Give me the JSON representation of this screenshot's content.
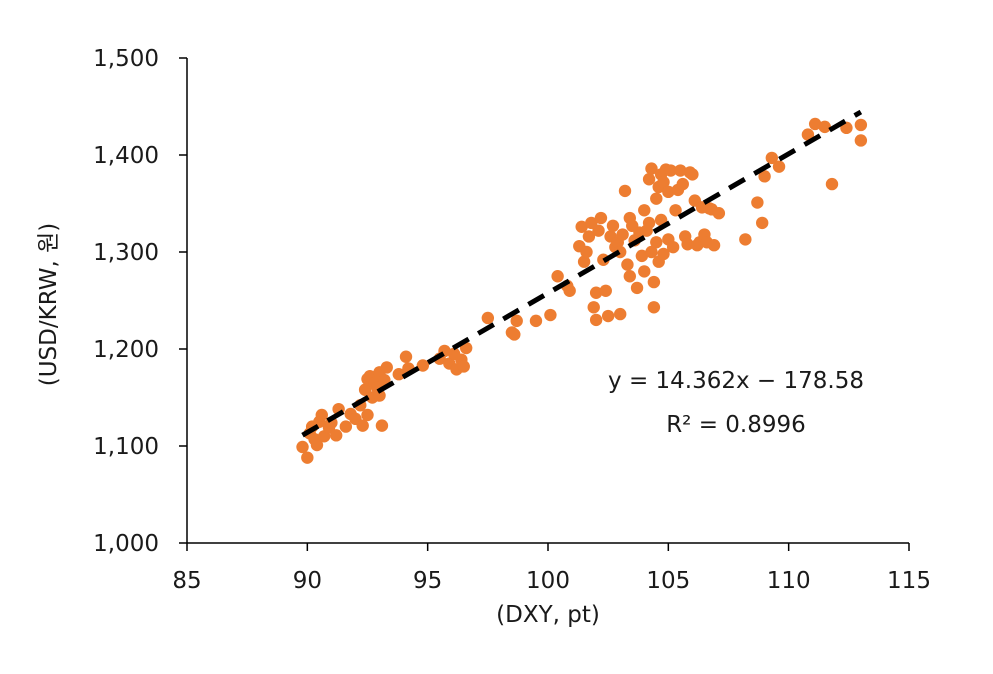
{
  "chart_data": {
    "type": "scatter",
    "xlabel": "(DXY, pt)",
    "ylabel": "(USD/KRW, 원)",
    "xlim": [
      85,
      115
    ],
    "ylim": [
      1000,
      1500
    ],
    "x_ticks": [
      85,
      90,
      95,
      100,
      105,
      110,
      115
    ],
    "y_ticks": [
      1000,
      1100,
      1200,
      1300,
      1400,
      1500
    ],
    "x_tick_labels": [
      "85",
      "90",
      "95",
      "100",
      "105",
      "110",
      "115"
    ],
    "y_tick_labels": [
      "1,000",
      "1,100",
      "1,200",
      "1,300",
      "1,400",
      "1,500"
    ],
    "grid": false,
    "marker_color": "#ED7D31",
    "trendline": {
      "type": "linear",
      "slope": 14.362,
      "intercept": -178.58,
      "x_range": [
        89.8,
        113.0
      ],
      "color": "#000000",
      "style": "dashed",
      "equation_label": "y = 14.362x − 178.58",
      "r2_label": "R² = 0.8996"
    },
    "series": [
      {
        "points": [
          [
            89.8,
            1099
          ],
          [
            90.0,
            1088
          ],
          [
            90.1,
            1113
          ],
          [
            90.2,
            1120
          ],
          [
            90.3,
            1107
          ],
          [
            90.4,
            1101
          ],
          [
            90.5,
            1125
          ],
          [
            90.6,
            1132
          ],
          [
            90.7,
            1110
          ],
          [
            90.9,
            1119
          ],
          [
            91.0,
            1124
          ],
          [
            91.2,
            1111
          ],
          [
            91.3,
            1138
          ],
          [
            91.6,
            1120
          ],
          [
            91.8,
            1133
          ],
          [
            92.0,
            1128
          ],
          [
            92.2,
            1142
          ],
          [
            92.3,
            1121
          ],
          [
            92.4,
            1158
          ],
          [
            92.5,
            1169
          ],
          [
            92.5,
            1132
          ],
          [
            92.6,
            1172
          ],
          [
            92.7,
            1150
          ],
          [
            92.8,
            1165
          ],
          [
            92.9,
            1160
          ],
          [
            93.0,
            1152
          ],
          [
            93.0,
            1176
          ],
          [
            93.1,
            1121
          ],
          [
            93.2,
            1168
          ],
          [
            93.3,
            1181
          ],
          [
            93.8,
            1174
          ],
          [
            94.1,
            1192
          ],
          [
            94.2,
            1180
          ],
          [
            94.8,
            1183
          ],
          [
            95.5,
            1190
          ],
          [
            95.7,
            1198
          ],
          [
            95.9,
            1185
          ],
          [
            96.1,
            1195
          ],
          [
            96.2,
            1179
          ],
          [
            96.4,
            1189
          ],
          [
            96.5,
            1182
          ],
          [
            96.6,
            1201
          ],
          [
            97.5,
            1232
          ],
          [
            98.5,
            1217
          ],
          [
            98.6,
            1215
          ],
          [
            98.7,
            1229
          ],
          [
            99.5,
            1229
          ],
          [
            100.1,
            1235
          ],
          [
            100.4,
            1275
          ],
          [
            100.8,
            1265
          ],
          [
            100.9,
            1260
          ],
          [
            101.3,
            1306
          ],
          [
            101.4,
            1326
          ],
          [
            101.5,
            1290
          ],
          [
            101.6,
            1300
          ],
          [
            101.7,
            1316
          ],
          [
            101.8,
            1330
          ],
          [
            101.9,
            1243
          ],
          [
            102.0,
            1258
          ],
          [
            102.0,
            1230
          ],
          [
            102.1,
            1322
          ],
          [
            102.2,
            1335
          ],
          [
            102.3,
            1292
          ],
          [
            102.4,
            1260
          ],
          [
            102.5,
            1234
          ],
          [
            102.6,
            1316
          ],
          [
            102.7,
            1327
          ],
          [
            102.8,
            1305
          ],
          [
            102.9,
            1310
          ],
          [
            103.0,
            1300
          ],
          [
            103.0,
            1236
          ],
          [
            103.1,
            1318
          ],
          [
            103.2,
            1363
          ],
          [
            103.3,
            1287
          ],
          [
            103.4,
            1335
          ],
          [
            103.4,
            1275
          ],
          [
            103.5,
            1327
          ],
          [
            103.6,
            1312
          ],
          [
            103.7,
            1263
          ],
          [
            103.8,
            1320
          ],
          [
            103.9,
            1296
          ],
          [
            104.0,
            1343
          ],
          [
            104.0,
            1280
          ],
          [
            104.1,
            1322
          ],
          [
            104.2,
            1375
          ],
          [
            104.2,
            1330
          ],
          [
            104.3,
            1386
          ],
          [
            104.3,
            1300
          ],
          [
            104.4,
            1269
          ],
          [
            104.4,
            1243
          ],
          [
            104.5,
            1355
          ],
          [
            104.5,
            1310
          ],
          [
            104.6,
            1367
          ],
          [
            104.6,
            1290
          ],
          [
            104.7,
            1380
          ],
          [
            104.7,
            1333
          ],
          [
            104.8,
            1372
          ],
          [
            104.8,
            1298
          ],
          [
            104.9,
            1385
          ],
          [
            105.0,
            1362
          ],
          [
            105.0,
            1313
          ],
          [
            105.1,
            1384
          ],
          [
            105.2,
            1305
          ],
          [
            105.3,
            1343
          ],
          [
            105.4,
            1364
          ],
          [
            105.5,
            1384
          ],
          [
            105.6,
            1370
          ],
          [
            105.7,
            1316
          ],
          [
            105.8,
            1308
          ],
          [
            105.9,
            1382
          ],
          [
            106.0,
            1380
          ],
          [
            106.1,
            1353
          ],
          [
            106.2,
            1307
          ],
          [
            106.3,
            1310
          ],
          [
            106.4,
            1346
          ],
          [
            106.5,
            1318
          ],
          [
            106.6,
            1310
          ],
          [
            106.7,
            1345
          ],
          [
            106.8,
            1344
          ],
          [
            106.9,
            1307
          ],
          [
            107.1,
            1340
          ],
          [
            108.2,
            1313
          ],
          [
            108.7,
            1351
          ],
          [
            108.9,
            1330
          ],
          [
            109.0,
            1378
          ],
          [
            109.3,
            1397
          ],
          [
            109.6,
            1388
          ],
          [
            110.8,
            1421
          ],
          [
            111.1,
            1432
          ],
          [
            111.5,
            1429
          ],
          [
            111.8,
            1370
          ],
          [
            112.4,
            1428
          ],
          [
            113.0,
            1431
          ],
          [
            113.0,
            1415
          ]
        ]
      }
    ]
  }
}
